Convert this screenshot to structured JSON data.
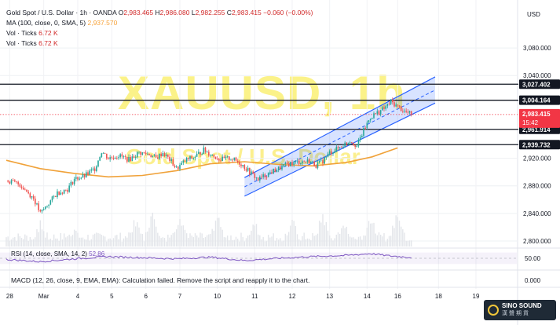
{
  "chart": {
    "title": "Gold Spot / U.S. Dollar · 1h · OANDA",
    "ohlc": {
      "o_label": "O",
      "o": "2,983.465",
      "h_label": "H",
      "h": "2,986.080",
      "l_label": "L",
      "l": "2,982.255",
      "c_label": "C",
      "c": "2,983.415",
      "change": "−0.060 (−0.00%)"
    },
    "ma_label": "MA (100, close, 0, SMA, 5)",
    "ma_value": "2,937.570",
    "vol1_label": "Vol · Ticks",
    "vol1_value": "6.72 K",
    "vol2_label": "Vol · Ticks",
    "vol2_value": "6.72 K",
    "currency": "USD",
    "watermark_symbol": "XAUUSD, 1h",
    "watermark_desc": "Gold Spot / U.S. Dollar",
    "rsi_label": "RSI (14, close, SMA, 14, 2)",
    "rsi_value": "52.86",
    "macd_label": "MACD (12, 26, close, 9, EMA, EMA): Calculation failed. Remove the script and reapply it to the chart.",
    "price_tag": "2,983.415",
    "countdown": "15:42",
    "logo_line1": "SINO SOUND",
    "logo_line2": "漢聲期貨",
    "colors": {
      "up": "#26a69a",
      "down": "#ef5350",
      "ma": "#f0a23a",
      "channel": "#2962ff",
      "rsi": "#7e57c2",
      "hline": "#131722",
      "price_tag": "#f23645"
    }
  },
  "chart_data": {
    "type": "candlestick",
    "instrument": "XAUUSD",
    "timeframe": "1h",
    "y_axis_labels": [
      "3,080.000",
      "3,040.000",
      "2,920.000",
      "2,880.000",
      "2,840.000",
      "2,800.000"
    ],
    "y_axis_values": [
      3080,
      3040,
      2920,
      2880,
      2840,
      2800
    ],
    "ylim": [
      2792,
      3104
    ],
    "x_tick_labels": [
      "28",
      "Mar",
      "4",
      "5",
      "6",
      "7",
      "10",
      "11",
      "12",
      "13",
      "14",
      "16",
      "18",
      "19"
    ],
    "x_tick_index": [
      2,
      22,
      42,
      62,
      82,
      102,
      124,
      146,
      168,
      190,
      212,
      230,
      254,
      276
    ],
    "x_span": 300,
    "levels": [
      {
        "label": "3,027.402",
        "value": 3027.402
      },
      {
        "label": "3,004.164",
        "value": 3004.164
      },
      {
        "label": "2,961.914",
        "value": 2961.914
      },
      {
        "label": "2,939.732",
        "value": 2939.732
      }
    ],
    "current_price": 2983.415,
    "channel": {
      "start_index": 140,
      "end_index": 252,
      "upper": [
        2892,
        3038
      ],
      "lower": [
        2865,
        3000
      ]
    },
    "ma_series": [
      [
        0,
        2917
      ],
      [
        20,
        2905
      ],
      [
        40,
        2898
      ],
      [
        60,
        2893
      ],
      [
        80,
        2895
      ],
      [
        100,
        2902
      ],
      [
        120,
        2912
      ],
      [
        140,
        2915
      ],
      [
        160,
        2911
      ],
      [
        180,
        2909
      ],
      [
        200,
        2914
      ],
      [
        215,
        2922
      ],
      [
        230,
        2935
      ]
    ],
    "price_path": [
      [
        0,
        2888
      ],
      [
        8,
        2882
      ],
      [
        16,
        2862
      ],
      [
        20,
        2840
      ],
      [
        24,
        2852
      ],
      [
        30,
        2870
      ],
      [
        36,
        2875
      ],
      [
        40,
        2890
      ],
      [
        46,
        2894
      ],
      [
        52,
        2905
      ],
      [
        56,
        2930
      ],
      [
        60,
        2920
      ],
      [
        66,
        2924
      ],
      [
        72,
        2918
      ],
      [
        78,
        2928
      ],
      [
        84,
        2926
      ],
      [
        88,
        2920
      ],
      [
        92,
        2928
      ],
      [
        96,
        2918
      ],
      [
        100,
        2905
      ],
      [
        106,
        2918
      ],
      [
        110,
        2921
      ],
      [
        116,
        2932
      ],
      [
        120,
        2926
      ],
      [
        126,
        2918
      ],
      [
        132,
        2920
      ],
      [
        138,
        2912
      ],
      [
        143,
        2900
      ],
      [
        148,
        2889
      ],
      [
        154,
        2898
      ],
      [
        160,
        2905
      ],
      [
        166,
        2912
      ],
      [
        172,
        2915
      ],
      [
        178,
        2916
      ],
      [
        182,
        2910
      ],
      [
        186,
        2916
      ],
      [
        190,
        2928
      ],
      [
        196,
        2936
      ],
      [
        202,
        2946
      ],
      [
        206,
        2938
      ],
      [
        210,
        2960
      ],
      [
        214,
        2980
      ],
      [
        218,
        2986
      ],
      [
        222,
        2992
      ],
      [
        226,
        3002
      ],
      [
        230,
        2995
      ],
      [
        234,
        2988
      ],
      [
        238,
        2983.4
      ]
    ],
    "volume_peaks": [
      [
        20,
        34
      ],
      [
        40,
        28
      ],
      [
        76,
        42
      ],
      [
        86,
        58
      ],
      [
        102,
        52
      ],
      [
        124,
        48
      ],
      [
        146,
        36
      ],
      [
        168,
        40
      ],
      [
        186,
        50
      ],
      [
        198,
        38
      ],
      [
        214,
        46
      ],
      [
        230,
        54
      ]
    ],
    "rsi": {
      "level": 50,
      "level_label": "50.00",
      "points": [
        [
          0,
          46
        ],
        [
          20,
          38
        ],
        [
          40,
          48
        ],
        [
          60,
          56
        ],
        [
          80,
          52
        ],
        [
          100,
          48
        ],
        [
          120,
          54
        ],
        [
          140,
          42
        ],
        [
          160,
          50
        ],
        [
          180,
          56
        ],
        [
          200,
          60
        ],
        [
          214,
          66
        ],
        [
          226,
          58
        ],
        [
          238,
          52.86
        ]
      ]
    },
    "macd": {
      "zero_label": "0.000"
    }
  }
}
